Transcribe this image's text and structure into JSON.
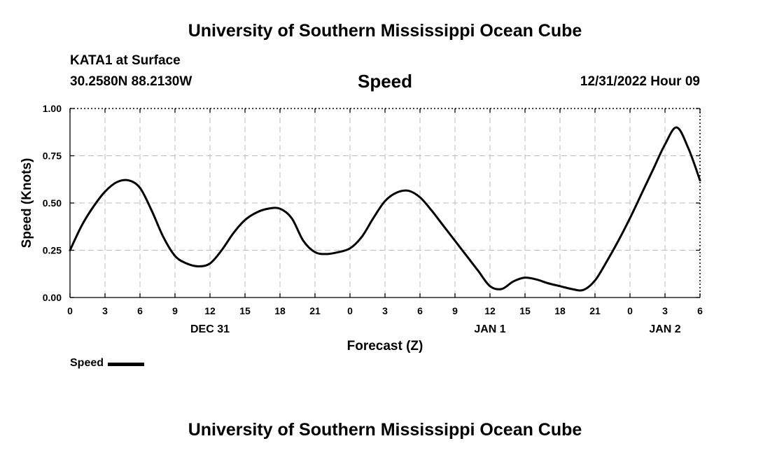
{
  "header": {
    "title": "University of Southern Mississippi Ocean Cube",
    "station": "KATA1 at Surface",
    "coords": "30.2580N  88.2130W",
    "variable": "Speed",
    "datetime": "12/31/2022 Hour 09"
  },
  "footer": {
    "title": "University of Southern Mississippi Ocean Cube"
  },
  "legend": {
    "label": "Speed",
    "color": "#000000"
  },
  "chart_data": {
    "type": "line",
    "title": "Speed",
    "xlabel": "Forecast (Z)",
    "ylabel": "Speed (Knots)",
    "xlim": [
      0,
      54
    ],
    "ylim": [
      0,
      1
    ],
    "grid": true,
    "x_ticks": [
      0,
      3,
      6,
      9,
      12,
      15,
      18,
      21,
      24,
      27,
      30,
      33,
      36,
      39,
      42,
      45,
      48,
      51,
      54
    ],
    "x_tick_labels": [
      "0",
      "3",
      "6",
      "9",
      "12",
      "15",
      "18",
      "21",
      "0",
      "3",
      "6",
      "9",
      "12",
      "15",
      "18",
      "21",
      "0",
      "3",
      "6"
    ],
    "date_labels": [
      {
        "x": 12,
        "label": "DEC 31"
      },
      {
        "x": 36,
        "label": "JAN 1"
      },
      {
        "x": 51,
        "label": "JAN 2"
      }
    ],
    "y_ticks": [
      0,
      0.25,
      0.5,
      0.75,
      1.0
    ],
    "y_tick_labels": [
      "0.00",
      "0.25",
      "0.50",
      "0.75",
      "1.00"
    ],
    "series": [
      {
        "name": "Speed",
        "color": "#000000",
        "x": [
          0,
          1,
          2,
          3,
          4,
          5,
          6,
          7,
          8,
          9,
          10,
          11,
          12,
          13,
          14,
          15,
          16,
          17,
          18,
          19,
          20,
          21,
          22,
          23,
          24,
          25,
          26,
          27,
          28,
          29,
          30,
          31,
          32,
          33,
          34,
          35,
          36,
          37,
          38,
          39,
          40,
          41,
          42,
          43,
          44,
          45,
          46,
          47,
          48,
          49,
          50,
          51,
          52,
          53,
          54
        ],
        "values": [
          0.25,
          0.38,
          0.48,
          0.56,
          0.61,
          0.62,
          0.58,
          0.46,
          0.32,
          0.22,
          0.18,
          0.165,
          0.18,
          0.25,
          0.34,
          0.41,
          0.45,
          0.47,
          0.47,
          0.42,
          0.3,
          0.24,
          0.23,
          0.24,
          0.26,
          0.32,
          0.42,
          0.51,
          0.555,
          0.565,
          0.53,
          0.46,
          0.38,
          0.3,
          0.22,
          0.14,
          0.06,
          0.045,
          0.085,
          0.105,
          0.095,
          0.075,
          0.06,
          0.045,
          0.04,
          0.09,
          0.19,
          0.3,
          0.42,
          0.55,
          0.68,
          0.81,
          0.9,
          0.79,
          0.62
        ]
      }
    ]
  }
}
